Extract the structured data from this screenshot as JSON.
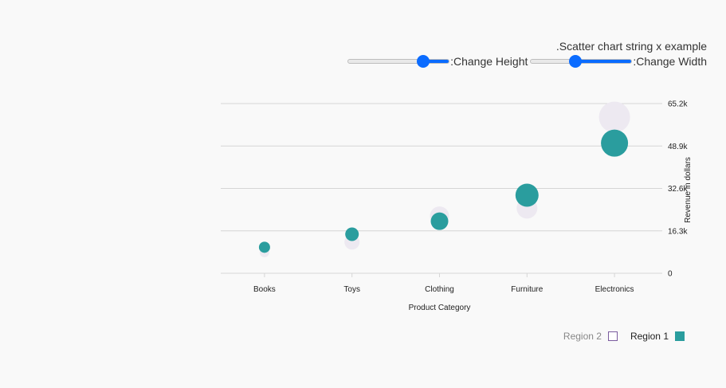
{
  "header": {
    "example_title": ".Scatter chart string x example"
  },
  "controls": {
    "height_label": ":Change Height",
    "height_value": 0.78,
    "width_label": ":Change Width",
    "width_value": 0.43
  },
  "colors": {
    "region1": "#2a9d9e",
    "region2": "#ede9f1",
    "region2_border": "#7b5b9e",
    "grid": "#d6d6d6",
    "slider": "#0b6cff"
  },
  "legend": {
    "items": [
      {
        "label": "Region 2",
        "swatch": "outline"
      },
      {
        "label": "Region 1",
        "swatch": "filled"
      }
    ]
  },
  "chart_data": {
    "type": "scatter",
    "categories": [
      "Books",
      "Toys",
      "Clothing",
      "Furniture",
      "Electronics"
    ],
    "xlabel": "Product Category",
    "ylabel": "Revenue in dollars",
    "ylim": [
      0,
      65200
    ],
    "yticks": [
      0,
      16300,
      32600,
      48900,
      65200
    ],
    "ytick_labels": [
      "0",
      "16.3k",
      "32.6k",
      "48.9k",
      "65.2k"
    ],
    "y_axis_position": "right",
    "grid": true,
    "legend_position": "bottom-right",
    "bubble_size": true,
    "series": [
      {
        "name": "Region 1",
        "values": [
          10000,
          15000,
          20000,
          30000,
          50000
        ],
        "sizes": [
          10,
          13,
          18,
          25,
          30
        ]
      },
      {
        "name": "Region 2",
        "values": [
          8000,
          12000,
          22000,
          25000,
          60000
        ],
        "sizes": [
          8,
          15,
          20,
          22,
          35
        ]
      }
    ]
  }
}
